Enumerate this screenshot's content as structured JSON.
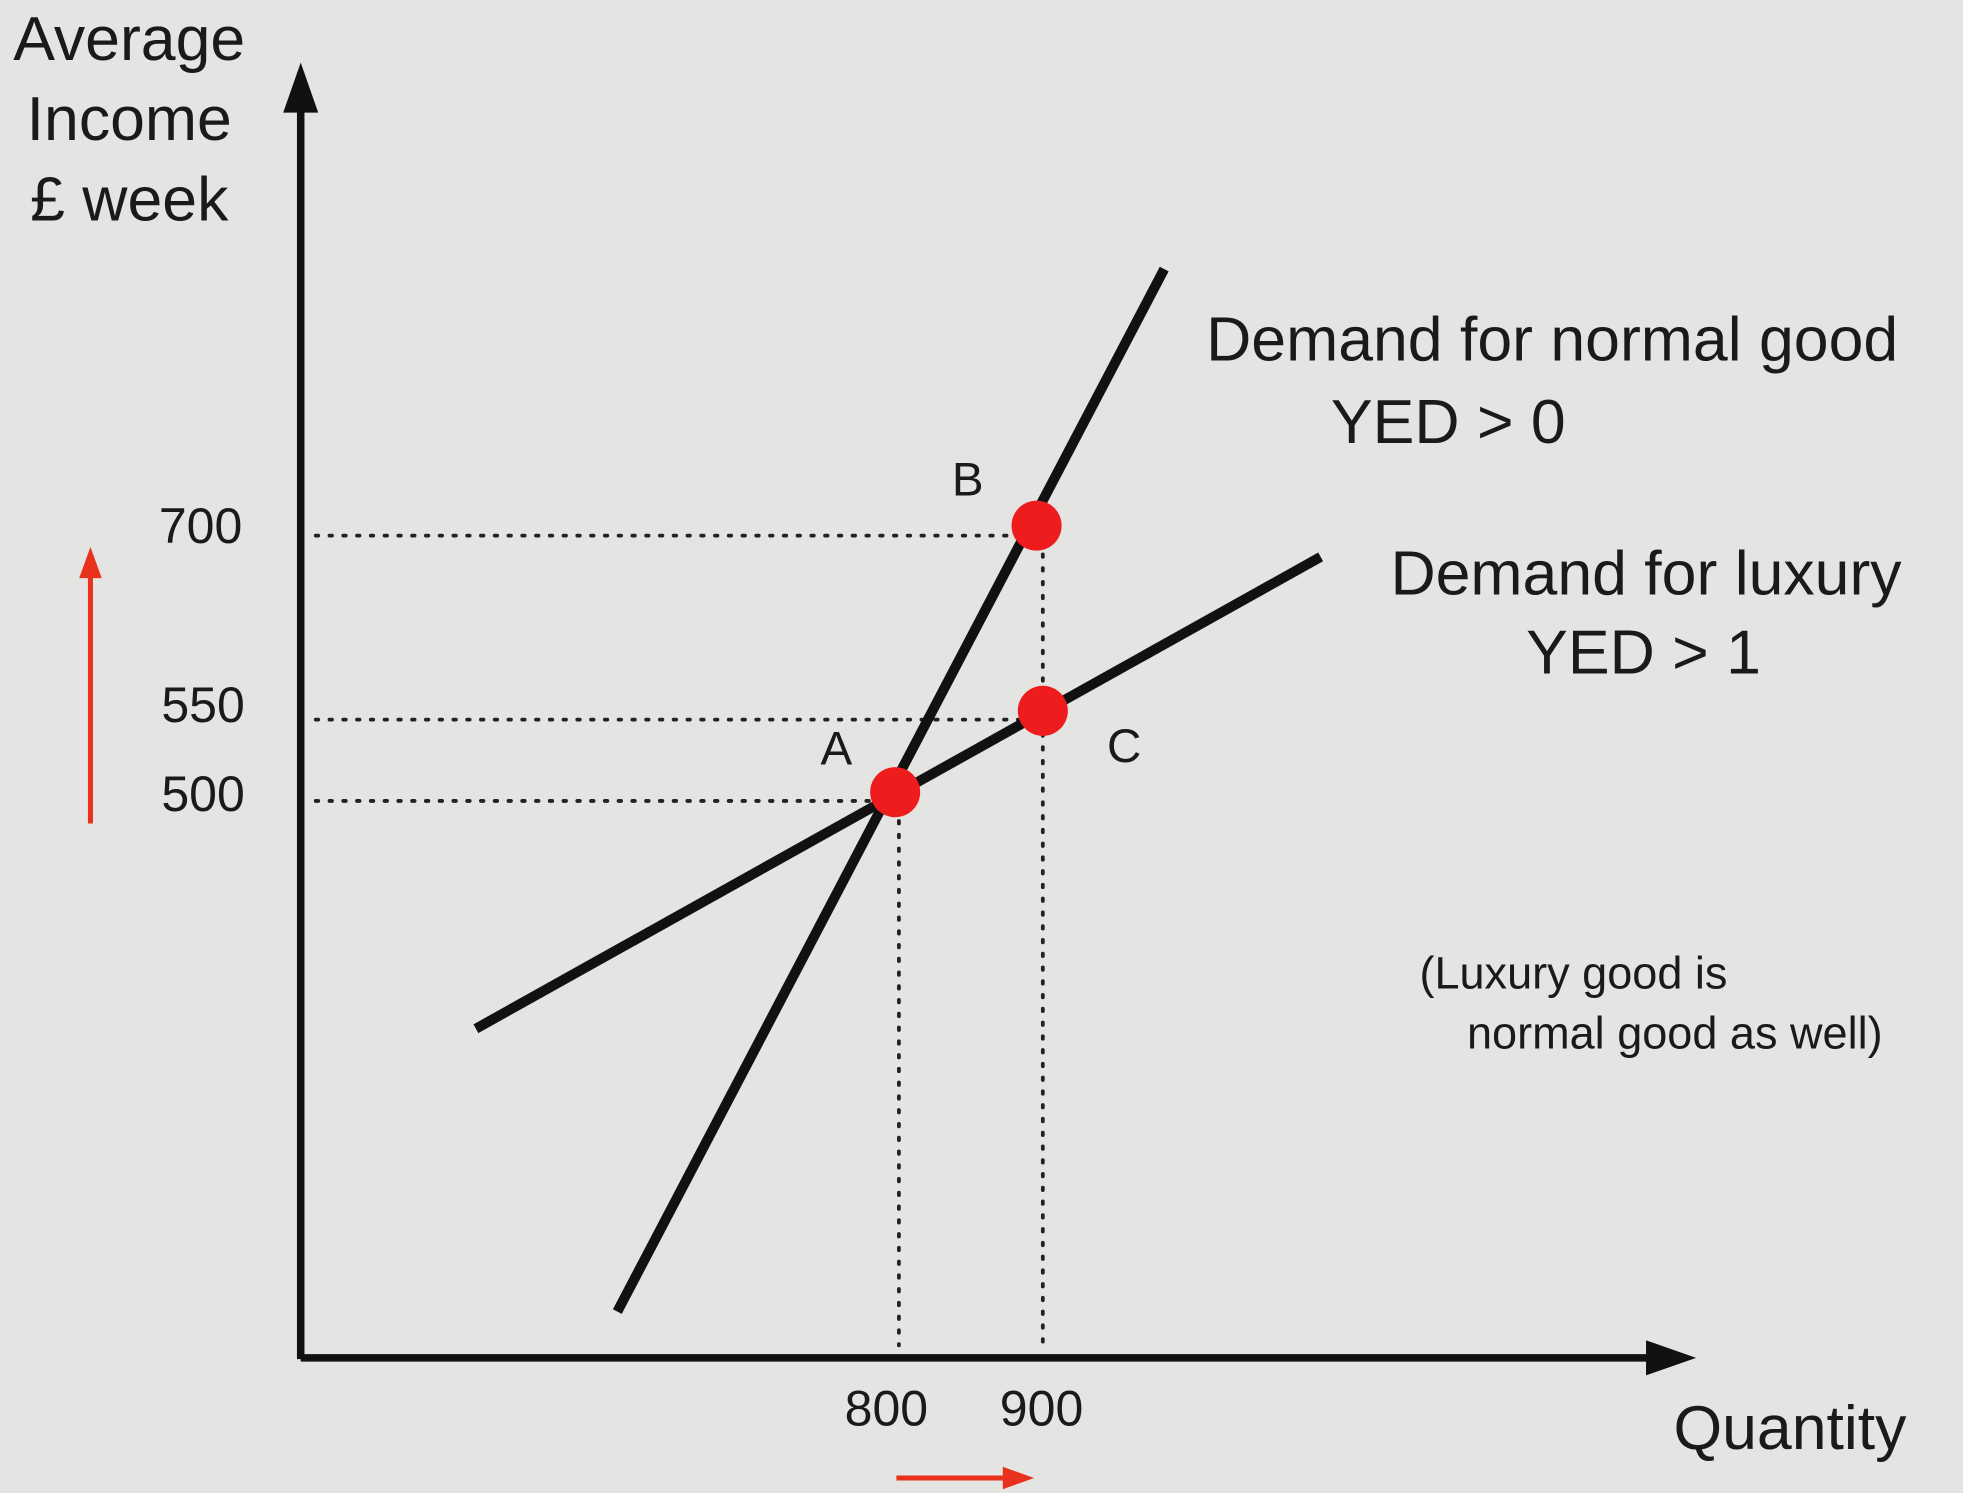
{
  "y_axis": {
    "label": [
      "Average",
      "Income",
      "£ week"
    ],
    "ticks": [
      700,
      550,
      500
    ]
  },
  "x_axis": {
    "label": "Quantity",
    "ticks": [
      800,
      900
    ]
  },
  "curves": [
    {
      "label": "Demand for normal good",
      "note": "YED > 0"
    },
    {
      "label": "Demand for luxury",
      "note": "YED > 1"
    }
  ],
  "points": [
    "A",
    "B",
    "C"
  ],
  "note": [
    "(Luxury good is",
    "normal good as well)"
  ]
}
